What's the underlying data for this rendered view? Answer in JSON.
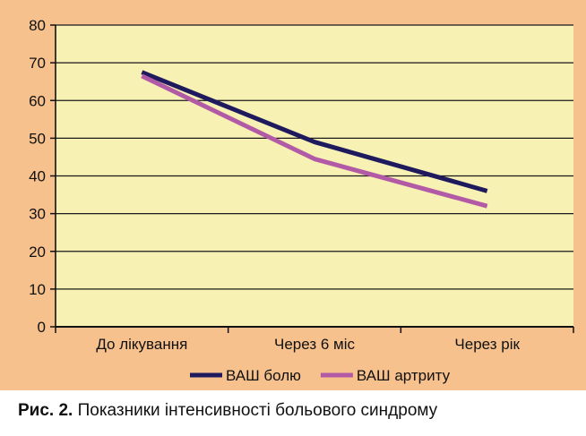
{
  "chart_data": {
    "type": "line",
    "categories": [
      "До лікування",
      "Через 6 міс",
      "Через рік"
    ],
    "y_ticks": [
      0,
      10,
      20,
      30,
      40,
      50,
      60,
      70,
      80
    ],
    "ylim": [
      0,
      80
    ],
    "grid": true,
    "legend_position": "bottom",
    "series": [
      {
        "name": "ВАШ болю",
        "color": "#1f1a5e",
        "values": [
          67.5,
          49,
          36
        ]
      },
      {
        "name": "ВАШ артриту",
        "color": "#b25aa6",
        "values": [
          66.5,
          44.5,
          32
        ]
      }
    ],
    "colors": {
      "panel": "#f6c18d",
      "plot_area": "#f7f1b4",
      "grid": "#1a1a1a"
    }
  },
  "caption": {
    "label": "Рис. 2.",
    "text": " Показники інтенсивності больового синдрому"
  }
}
